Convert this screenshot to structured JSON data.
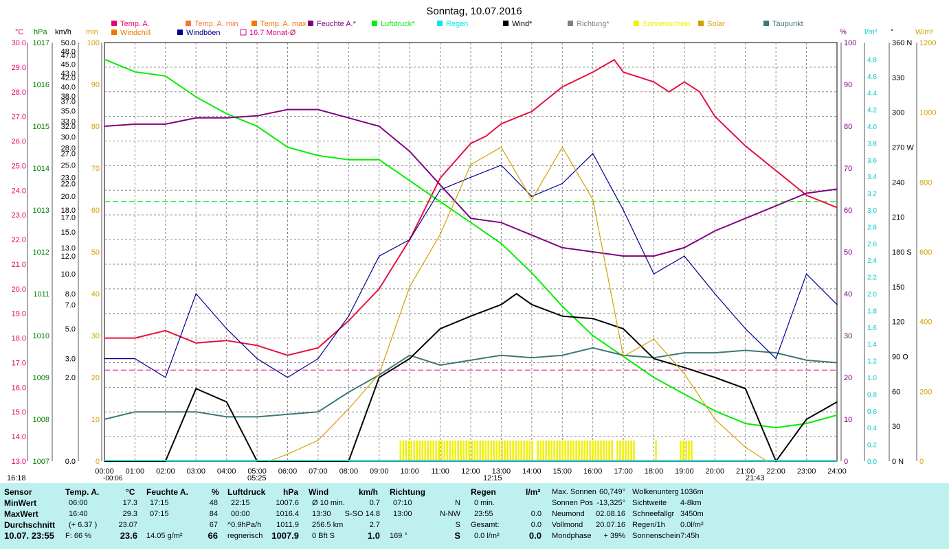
{
  "title": "Sonntag, 10.07.2016",
  "legend": [
    {
      "label": "Temp. A.",
      "color": "#e8006e"
    },
    {
      "label": "Temp. A. min",
      "color": "#f07838"
    },
    {
      "label": "Temp. A. max",
      "color": "#f07800"
    },
    {
      "label": "Feuchte A.*",
      "color": "#800080"
    },
    {
      "label": "Luftdruck*",
      "color": "#00ee00"
    },
    {
      "label": "Regen",
      "color": "#00e8e8"
    },
    {
      "label": "Wind*",
      "color": "#000000"
    },
    {
      "label": "Richtung*",
      "color": "#808080"
    },
    {
      "label": "Sonnenschein",
      "color": "#f0f000"
    },
    {
      "label": "Solar",
      "color": "#d4a000"
    },
    {
      "label": "Taupunkt",
      "color": "#3c7878"
    },
    {
      "label": "Windchill",
      "color": "#f07800"
    },
    {
      "label": "Windböen",
      "color": "#00008c"
    },
    {
      "label": "16.7 Monat-Ø",
      "color": "#d4007c"
    }
  ],
  "chart_data": {
    "type": "line",
    "title": "Sonntag, 10.07.2016",
    "x_ticks": [
      "00:00",
      "01:00",
      "02:00",
      "03:00",
      "04:00",
      "05:00",
      "06:00",
      "07:00",
      "08:00",
      "09:00",
      "10:00",
      "11:00",
      "12:00",
      "13:00",
      "14:00",
      "15:00",
      "16:00",
      "17:00",
      "18:00",
      "19:00",
      "20:00",
      "21:00",
      "22:00",
      "23:00",
      "24:00"
    ],
    "x_range_h": [
      0,
      24
    ],
    "axes": {
      "temp": {
        "unit": "°C",
        "range": [
          13.0,
          30.0
        ],
        "ticks": [
          "30.0",
          "29.0",
          "28.0",
          "27.0",
          "26.0",
          "25.0",
          "24.0",
          "23.0",
          "22.0",
          "21.0",
          "20.0",
          "19.0",
          "18.0",
          "17.0",
          "16.0",
          "15.0",
          "14.0",
          "13.0"
        ]
      },
      "pressure": {
        "unit": "hPa",
        "range": [
          1007,
          1017
        ],
        "ticks": [
          "1017",
          "1016",
          "1015",
          "1014",
          "1013",
          "1012",
          "1011",
          "1010",
          "1009",
          "1008",
          "1007"
        ]
      },
      "wind": {
        "unit": "km/h",
        "ticks": [
          "50.0",
          "48.0",
          "47.0",
          "45.0",
          "43.0",
          "42.0",
          "40.0",
          "38.0",
          "37.0",
          "35.0",
          "33.0",
          "32.0",
          "30.0",
          "28.0",
          "27.0",
          "25.0",
          "23.0",
          "22.0",
          "20.0",
          "18.0",
          "17.0",
          "15.0",
          "13.0",
          "12.0",
          "10.0",
          "8.0",
          "7.0",
          "5.0",
          "3.0",
          "2.0",
          "0.0"
        ]
      },
      "minutes": {
        "unit": "min",
        "range": [
          0,
          100
        ],
        "ticks": [
          "100",
          "90",
          "80",
          "70",
          "60",
          "50",
          "40",
          "30",
          "20",
          "10",
          "0"
        ]
      },
      "humidity": {
        "unit": "%",
        "range": [
          0,
          100
        ],
        "ticks": [
          "100",
          "90",
          "80",
          "70",
          "60",
          "50",
          "40",
          "30",
          "20",
          "10",
          "0"
        ]
      },
      "rain": {
        "unit": "l/m²",
        "range": [
          0,
          5.0
        ],
        "ticks": [
          "4.8",
          "4.6",
          "4.4",
          "4.2",
          "4.0",
          "3.8",
          "3.6",
          "3.4",
          "3.2",
          "3.0",
          "2.8",
          "2.6",
          "2.4",
          "2.2",
          "2.0",
          "1.8",
          "1.6",
          "1.4",
          "1.2",
          "1.0",
          "0.8",
          "0.6",
          "0.4",
          "0.2",
          "0.0"
        ]
      },
      "direction": {
        "unit": "°",
        "range": [
          0,
          360
        ],
        "ticks": [
          "360 N",
          "330",
          "300",
          "270 W",
          "240",
          "210",
          "180 S",
          "150",
          "120",
          "90 O",
          "60",
          "30",
          "0 N"
        ]
      },
      "solar": {
        "unit": "W/m²",
        "range": [
          0,
          1200
        ],
        "ticks": [
          "1200",
          "1000",
          "800",
          "600",
          "400",
          "200",
          "0"
        ]
      }
    },
    "reference_lines": [
      {
        "name": "Luftdruck Monat-Ø",
        "axis": "pressure",
        "value": 1013.2
      },
      {
        "name": "Temp. Monat-Ø",
        "axis": "temp",
        "value": 16.7
      }
    ],
    "series": [
      {
        "name": "Temp. A.",
        "axis": "temp",
        "points": [
          [
            0,
            18
          ],
          [
            1,
            18
          ],
          [
            2,
            18.3
          ],
          [
            3,
            17.8
          ],
          [
            4,
            17.9
          ],
          [
            5,
            17.7
          ],
          [
            6,
            17.3
          ],
          [
            7,
            17.6
          ],
          [
            8,
            18.7
          ],
          [
            9,
            20
          ],
          [
            10,
            22
          ],
          [
            11,
            24.5
          ],
          [
            12,
            25.9
          ],
          [
            12.5,
            26.2
          ],
          [
            13,
            26.7
          ],
          [
            14,
            27.2
          ],
          [
            15,
            28.2
          ],
          [
            16,
            28.8
          ],
          [
            16.7,
            29.3
          ],
          [
            17,
            28.8
          ],
          [
            18,
            28.4
          ],
          [
            18.5,
            28
          ],
          [
            19,
            28.4
          ],
          [
            19.5,
            28
          ],
          [
            20,
            27
          ],
          [
            21,
            25.8
          ],
          [
            22,
            24.8
          ],
          [
            23,
            23.8
          ],
          [
            24,
            23.3
          ]
        ]
      },
      {
        "name": "Luftdruck*",
        "axis": "pressure",
        "points": [
          [
            0,
            1016.6
          ],
          [
            1,
            1016.3
          ],
          [
            2,
            1016.2
          ],
          [
            3,
            1015.7
          ],
          [
            4,
            1015.3
          ],
          [
            5,
            1015
          ],
          [
            6,
            1014.5
          ],
          [
            7,
            1014.3
          ],
          [
            8,
            1014.2
          ],
          [
            9,
            1014.2
          ],
          [
            10,
            1013.7
          ],
          [
            11,
            1013.2
          ],
          [
            12,
            1012.7
          ],
          [
            13,
            1012.2
          ],
          [
            14,
            1011.5
          ],
          [
            15,
            1010.7
          ],
          [
            16,
            1010
          ],
          [
            17,
            1009.5
          ],
          [
            18,
            1009
          ],
          [
            19,
            1008.6
          ],
          [
            20,
            1008.2
          ],
          [
            21,
            1007.9
          ],
          [
            22,
            1007.8
          ],
          [
            23,
            1007.9
          ],
          [
            24,
            1008.1
          ]
        ]
      },
      {
        "name": "Feuchte A.*",
        "axis": "humidity",
        "points": [
          [
            0,
            80
          ],
          [
            1,
            80.5
          ],
          [
            2,
            80.5
          ],
          [
            3,
            82
          ],
          [
            4,
            82
          ],
          [
            5,
            82.5
          ],
          [
            6,
            84
          ],
          [
            7,
            84
          ],
          [
            8,
            82
          ],
          [
            9,
            80
          ],
          [
            10,
            74
          ],
          [
            11,
            66
          ],
          [
            12,
            58
          ],
          [
            13,
            57
          ],
          [
            14,
            54
          ],
          [
            15,
            51
          ],
          [
            16,
            50
          ],
          [
            17,
            49
          ],
          [
            18,
            49
          ],
          [
            19,
            51
          ],
          [
            20,
            55
          ],
          [
            21,
            58
          ],
          [
            22,
            61
          ],
          [
            23,
            64
          ],
          [
            24,
            65
          ]
        ]
      },
      {
        "name": "Taupunkt",
        "axis": "temp",
        "points": [
          [
            0,
            14.7
          ],
          [
            1,
            15
          ],
          [
            2,
            15
          ],
          [
            3,
            15
          ],
          [
            4,
            14.8
          ],
          [
            5,
            14.8
          ],
          [
            6,
            14.9
          ],
          [
            7,
            15
          ],
          [
            8,
            15.8
          ],
          [
            9,
            16.5
          ],
          [
            10,
            17.3
          ],
          [
            11,
            16.9
          ],
          [
            12,
            17.1
          ],
          [
            13,
            17.3
          ],
          [
            14,
            17.2
          ],
          [
            15,
            17.3
          ],
          [
            16,
            17.6
          ],
          [
            17,
            17.3
          ],
          [
            18,
            17.2
          ],
          [
            19,
            17.4
          ],
          [
            20,
            17.4
          ],
          [
            21,
            17.5
          ],
          [
            22,
            17.4
          ],
          [
            23,
            17.1
          ],
          [
            24,
            17
          ]
        ]
      },
      {
        "name": "Wind*",
        "axis": "wind",
        "points": [
          [
            0,
            0
          ],
          [
            2,
            0
          ],
          [
            3,
            1.5
          ],
          [
            4,
            1
          ],
          [
            5,
            0
          ],
          [
            6,
            0
          ],
          [
            7,
            0
          ],
          [
            8,
            0
          ],
          [
            9,
            2
          ],
          [
            10,
            3
          ],
          [
            11,
            5
          ],
          [
            12,
            6
          ],
          [
            13,
            7
          ],
          [
            13.5,
            8
          ],
          [
            14,
            7
          ],
          [
            15,
            6
          ],
          [
            16,
            5.8
          ],
          [
            17,
            5
          ],
          [
            18,
            3
          ],
          [
            19,
            2.5
          ],
          [
            20,
            2
          ],
          [
            21,
            1.5
          ],
          [
            22,
            0
          ],
          [
            23,
            0.5
          ],
          [
            24,
            1
          ]
        ]
      },
      {
        "name": "Windböen",
        "axis": "wind",
        "points": [
          [
            0,
            3
          ],
          [
            1,
            3
          ],
          [
            2,
            2
          ],
          [
            3,
            8
          ],
          [
            4,
            5
          ],
          [
            5,
            3
          ],
          [
            6,
            2
          ],
          [
            7,
            3
          ],
          [
            8,
            6
          ],
          [
            9,
            12
          ],
          [
            10,
            14
          ],
          [
            11,
            21
          ],
          [
            12,
            23
          ],
          [
            13,
            25
          ],
          [
            14,
            20
          ],
          [
            15,
            22
          ],
          [
            16,
            27
          ],
          [
            17,
            18
          ],
          [
            18,
            10
          ],
          [
            19,
            12
          ],
          [
            20,
            8
          ],
          [
            21,
            5
          ],
          [
            22,
            3
          ],
          [
            23,
            10
          ],
          [
            24,
            7
          ]
        ]
      },
      {
        "name": "Solar",
        "axis": "solar",
        "points": [
          [
            5.4,
            0
          ],
          [
            6,
            20
          ],
          [
            7,
            60
          ],
          [
            8,
            150
          ],
          [
            9,
            250
          ],
          [
            10,
            500
          ],
          [
            11,
            650
          ],
          [
            12,
            850
          ],
          [
            13,
            900
          ],
          [
            14,
            750
          ],
          [
            15,
            900
          ],
          [
            16,
            750
          ],
          [
            17,
            300
          ],
          [
            18,
            350
          ],
          [
            19,
            250
          ],
          [
            20,
            120
          ],
          [
            21,
            40
          ],
          [
            21.7,
            0
          ]
        ]
      }
    ],
    "markers": [
      {
        "label": "16:18",
        "position": "bottom-left"
      },
      {
        "label": "-00:06",
        "position": "x-axis"
      },
      {
        "label": "05:25",
        "position": "x-axis"
      },
      {
        "label": "12:15",
        "position": "x-axis"
      },
      {
        "label": "21:43",
        "position": "x-axis"
      }
    ]
  },
  "axis_headers": {
    "temp": "°C",
    "pressure": "hPa",
    "wind": "km/h",
    "minutes": "min",
    "humidity": "%",
    "rain": "l/m²",
    "direction": "°",
    "solar": "W/m²"
  },
  "markers": {
    "left_time": "16:18",
    "sunrise_marker": "-00:06",
    "m1": "05:25",
    "m2": "12:15",
    "m3": "21:43"
  },
  "stats": {
    "sensor_header": "Sensor",
    "temp_header": "Temp. A.",
    "temp_unit": "°C",
    "hum_header": "Feuchte A.",
    "hum_unit": "%",
    "press_header": "Luftdruck",
    "press_unit": "hPa",
    "wind_header": "Wind",
    "wind_unit": "km/h",
    "dir_header": "Richtung",
    "rain_header": "Regen",
    "rain_unit": "l/m²",
    "row_labels": [
      "MinWert",
      "MaxWert",
      "Durchschnitt"
    ],
    "date_label": "10.07. 23:55",
    "temp_rows": [
      [
        "06:00",
        "17.3"
      ],
      [
        "16:40",
        "29.3"
      ],
      [
        "(+ 6.37 )",
        "23.07"
      ]
    ],
    "temp_feels": "F: 66 %",
    "temp_now": "23.6",
    "hum_rows": [
      [
        "17:15",
        "48"
      ],
      [
        "07:15",
        "84"
      ],
      [
        "",
        "67"
      ]
    ],
    "hum_abs": "14.05 g/m²",
    "hum_now": "66",
    "press_rows": [
      [
        "22:15",
        "1007.6"
      ],
      [
        "00:00",
        "1016.4"
      ],
      [
        "^0.9hPa/h",
        "1011.9"
      ]
    ],
    "press_trend": "regnerisch",
    "press_now": "1007.9",
    "wind_rows": [
      [
        "Ø 10 min.",
        "0.7"
      ],
      [
        "13:30",
        "S-SO 14.8"
      ],
      [
        "256.5 km",
        "2.7"
      ]
    ],
    "wind_bft": "0 Bft S",
    "wind_now": "1.0",
    "dir_rows": [
      [
        "07:10",
        "N"
      ],
      [
        "13:00",
        "N-NW"
      ],
      [
        "",
        "S"
      ]
    ],
    "dir_deg": "169 °",
    "dir_now": "S",
    "rain_rows": [
      [
        "0 min.",
        ""
      ],
      [
        "23:55",
        "0.0"
      ],
      [
        "Gesamt:",
        "0.0"
      ]
    ],
    "rain_total_row": [
      "0.0 l/m²",
      "0.0"
    ],
    "astro1": [
      [
        "Max. Sonnen",
        "60,749°"
      ],
      [
        "Sonnen Pos",
        "-13,325°"
      ],
      [
        "Neumond",
        "02.08.16"
      ],
      [
        "Vollmond",
        "20.07.16"
      ],
      [
        "Mondphase",
        "+ 39%"
      ]
    ],
    "astro2": [
      [
        "Wolkenunterg",
        "1036m"
      ],
      [
        "Sichtweite",
        "4-8km"
      ],
      [
        "Schneefallgr",
        "3450m"
      ],
      [
        "Regen/1h",
        "0.0l/m²"
      ],
      [
        "Sonnenschein",
        "7:45h"
      ]
    ]
  }
}
